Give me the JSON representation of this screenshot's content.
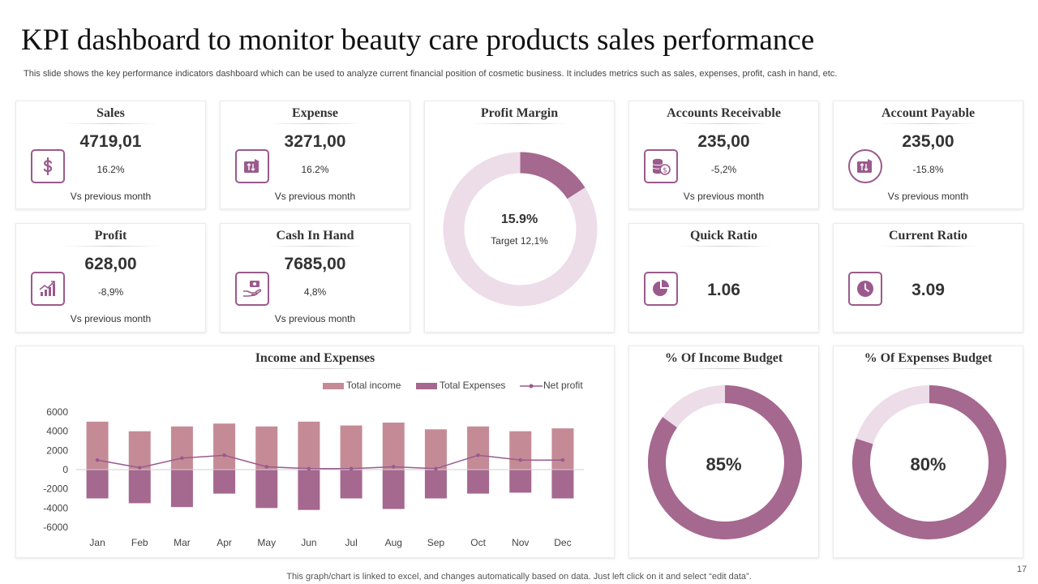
{
  "header": {
    "title": "KPI dashboard to monitor beauty care products sales performance",
    "subtitle": "This slide shows the key performance indicators dashboard which can be used to analyze current financial position of cosmetic  business. It includes metrics such as sales, expenses, profit, cash in hand, etc."
  },
  "colors": {
    "accent": "#9b5a8d",
    "income": "#c48b96",
    "expenses": "#a5688f",
    "netprofit": "#9b5a8d",
    "donut_track": "#ecdde8"
  },
  "kpis": {
    "sales": {
      "title": "Sales",
      "value": "4719,01",
      "change": "16.2%",
      "vs": "Vs previous  month",
      "icon": "dollar-icon"
    },
    "expense": {
      "title": "Expense",
      "value": "3271,00",
      "change": "16.2%",
      "vs": "Vs previous  month",
      "icon": "wallet-transfer-icon"
    },
    "accounts_receivable": {
      "title": "Accounts Receivable",
      "value": "235,00",
      "change": "-5,2%",
      "vs": "Vs previous  month",
      "icon": "coins-icon"
    },
    "account_payable": {
      "title": "Account Payable",
      "value": "235,00",
      "change": "-15.8%",
      "vs": "Vs previous  month",
      "icon": "wallet-transfer-icon"
    },
    "profit": {
      "title": "Profit",
      "value": "628,00",
      "change": "-8,9%",
      "vs": "Vs previous  month",
      "icon": "growth-chart-icon"
    },
    "cash_in_hand": {
      "title": "Cash In Hand",
      "value": "7685,00",
      "change": "4,8%",
      "vs": "Vs previous  month",
      "icon": "hand-cash-icon"
    }
  },
  "ratios": {
    "quick": {
      "title": "Quick Ratio",
      "value": "1.06",
      "icon": "pie-chart-icon"
    },
    "current": {
      "title": "Current Ratio",
      "value": "3.09",
      "icon": "clock-icon"
    }
  },
  "profit_margin": {
    "title": "Profit Margin",
    "value": "15.9%",
    "target": "Target  12,1%",
    "fraction": 0.159
  },
  "income_budget": {
    "title": "% Of Income Budget",
    "value": "85%",
    "fraction": 0.85
  },
  "expenses_budget": {
    "title": "% Of Expenses Budget",
    "value": "80%",
    "fraction": 0.8
  },
  "chart_data": {
    "type": "bar",
    "title": "Income and Expenses",
    "categories": [
      "Jan",
      "Feb",
      "Mar",
      "Apr",
      "May",
      "Jun",
      "Jul",
      "Aug",
      "Sep",
      "Oct",
      "Nov",
      "Dec"
    ],
    "series": [
      {
        "name": "Total income",
        "type": "bar",
        "values": [
          5000,
          4000,
          4500,
          4800,
          4500,
          5000,
          4600,
          4900,
          4200,
          4500,
          4000,
          4300
        ]
      },
      {
        "name": "Total Expenses",
        "type": "bar",
        "values": [
          -3000,
          -3500,
          -3900,
          -2500,
          -4000,
          -4200,
          -3000,
          -4100,
          -3000,
          -2500,
          -2400,
          -3000
        ]
      },
      {
        "name": "Net profit",
        "type": "line",
        "values": [
          1000,
          200,
          1200,
          1500,
          300,
          100,
          100,
          300,
          100,
          1500,
          1000,
          1000
        ]
      }
    ],
    "yticks": [
      "6000",
      "4000",
      "2000",
      "0",
      "-2000",
      "-4000",
      "-6000"
    ],
    "ylim": [
      -6000,
      6000
    ],
    "xlabel": "",
    "ylabel": "",
    "legend_position": "top-right"
  },
  "footer": {
    "note": "This graph/chart is linked to excel,  and changes automatically based on data. Just left click on it and select “edit data”.",
    "page": "17"
  }
}
